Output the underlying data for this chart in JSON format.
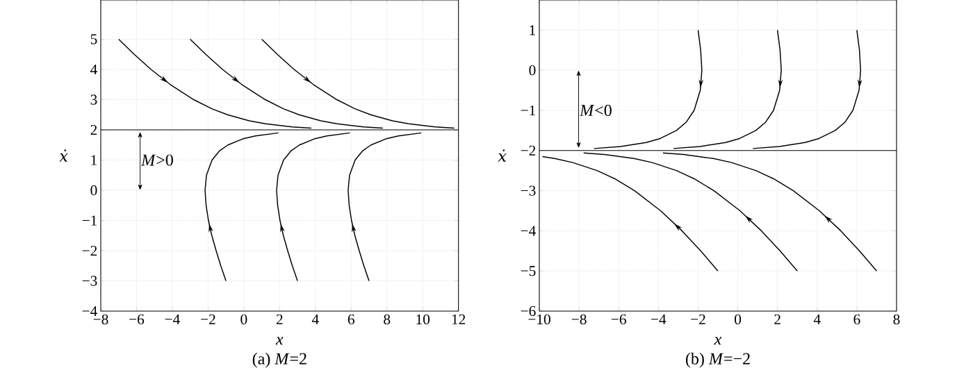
{
  "chart_data": [
    {
      "type": "line",
      "title": "(a) *M*=2",
      "xlabel": "x",
      "ylabel": "ẋ",
      "xlim": [
        -8,
        12
      ],
      "ylim": [
        -4,
        6.3
      ],
      "xticks": [
        {
          "value": -8,
          "label": "−8"
        },
        {
          "value": -6,
          "label": "−6"
        },
        {
          "value": -4,
          "label": "−4"
        },
        {
          "value": -2,
          "label": "−2"
        },
        0,
        2,
        4,
        6,
        8,
        10,
        12
      ],
      "yticks": [
        {
          "value": -4,
          "label": "−4"
        },
        {
          "value": -3,
          "label": "−3"
        },
        {
          "value": -2,
          "label": "−2"
        },
        {
          "value": -1,
          "label": "−1"
        },
        0,
        1,
        2,
        3,
        4,
        5
      ],
      "grid": true,
      "line_style": "solid",
      "ref_lines": [
        {
          "axis": "y",
          "value": 2,
          "color": "#000000"
        }
      ],
      "annotations": [
        "*M*>0"
      ],
      "series": [
        {
          "color": "#000000",
          "x": [
            -7,
            -6.13,
            -5.19,
            -4.11,
            -2.8,
            -1.79,
            -0.91,
            0.31,
            1.22,
            2.7,
            3.77
          ],
          "values": [
            5,
            4.5,
            4,
            3.5,
            3,
            2.7,
            2.5,
            2.3,
            2.2,
            2.1,
            2.06
          ]
        },
        {
          "color": "#000000",
          "x": [
            -3,
            -2.13,
            -1.19,
            -0.11,
            1.2,
            2.21,
            3.09,
            4.31,
            5.22,
            6.7,
            7.77
          ],
          "values": [
            5,
            4.5,
            4,
            3.5,
            3,
            2.7,
            2.5,
            2.3,
            2.2,
            2.1,
            2.06
          ]
        },
        {
          "color": "#000000",
          "x": [
            1,
            1.87,
            2.81,
            3.89,
            5.2,
            6.21,
            7.09,
            8.31,
            9.22,
            10.7,
            11.77
          ],
          "values": [
            5,
            4.5,
            4,
            3.5,
            3,
            2.7,
            2.5,
            2.3,
            2.2,
            2.1,
            2.06
          ]
        },
        {
          "color": "#000000",
          "x": [
            -1,
            -1.29,
            -1.55,
            -1.79,
            -1.98,
            -2.11,
            -2.17,
            -2.09,
            -1.78,
            -1.37,
            -0.89,
            -0.07,
            0.64,
            1.93
          ],
          "values": [
            -3,
            -2.5,
            -2,
            -1.5,
            -1,
            -0.5,
            0,
            0.5,
            1,
            1.3,
            1.5,
            1.7,
            1.8,
            1.9
          ]
        },
        {
          "color": "#000000",
          "x": [
            3,
            2.71,
            2.45,
            2.21,
            2.02,
            1.89,
            1.83,
            1.91,
            2.22,
            2.63,
            3.11,
            3.93,
            4.64,
            5.93
          ],
          "values": [
            -3,
            -2.5,
            -2,
            -1.5,
            -1,
            -0.5,
            0,
            0.5,
            1,
            1.3,
            1.5,
            1.7,
            1.8,
            1.9
          ]
        },
        {
          "color": "#000000",
          "x": [
            7,
            6.71,
            6.45,
            6.21,
            6.02,
            5.89,
            5.83,
            5.91,
            6.22,
            6.63,
            7.11,
            7.93,
            8.64,
            9.93
          ],
          "values": [
            -3,
            -2.5,
            -2,
            -1.5,
            -1,
            -0.5,
            0,
            0.5,
            1,
            1.3,
            1.5,
            1.7,
            1.8,
            1.9
          ]
        }
      ]
    },
    {
      "type": "line",
      "title": "(b) *M*=−2",
      "xlabel": "x",
      "ylabel": "ẋ",
      "xlim": [
        -10,
        8
      ],
      "ylim": [
        -6,
        1.75
      ],
      "xticks": [
        {
          "value": -10,
          "label": "−10"
        },
        {
          "value": -8,
          "label": "−8"
        },
        {
          "value": -6,
          "label": "−6"
        },
        {
          "value": -4,
          "label": "−4"
        },
        {
          "value": -2,
          "label": "−2"
        },
        0,
        2,
        4,
        6,
        8
      ],
      "yticks": [
        {
          "value": -6,
          "label": "−6"
        },
        {
          "value": -5,
          "label": "−5"
        },
        {
          "value": -4,
          "label": "−4"
        },
        {
          "value": -3,
          "label": "−3"
        },
        {
          "value": -2,
          "label": "−2"
        },
        {
          "value": -1,
          "label": "−1"
        },
        0,
        1
      ],
      "grid": true,
      "line_style": "solid",
      "ref_lines": [
        {
          "axis": "y",
          "value": -2,
          "color": "#000000"
        }
      ],
      "annotations": [
        "*M*<0"
      ],
      "series": [
        {
          "color": "#000000",
          "x": [
            -2,
            -1.87,
            -1.81,
            -1.89,
            -2.2,
            -2.61,
            -3.09,
            -3.91,
            -4.62,
            -5.91,
            -7.24
          ],
          "values": [
            1,
            0.5,
            0,
            -0.5,
            -1,
            -1.3,
            -1.5,
            -1.7,
            -1.8,
            -1.9,
            -1.95
          ]
        },
        {
          "color": "#000000",
          "x": [
            2,
            2.13,
            2.19,
            2.11,
            1.8,
            1.39,
            0.91,
            0.09,
            -0.62,
            -1.91,
            -3.24
          ],
          "values": [
            1,
            0.5,
            0,
            -0.5,
            -1,
            -1.3,
            -1.5,
            -1.7,
            -1.8,
            -1.9,
            -1.95
          ]
        },
        {
          "color": "#000000",
          "x": [
            6,
            6.13,
            6.19,
            6.11,
            5.8,
            5.39,
            4.91,
            4.09,
            3.38,
            2.09,
            0.76
          ],
          "values": [
            1,
            0.5,
            0,
            -0.5,
            -1,
            -1.3,
            -1.5,
            -1.7,
            -1.8,
            -1.9,
            -1.95
          ]
        },
        {
          "color": "#000000",
          "x": [
            -1,
            -1.87,
            -2.81,
            -3.89,
            -5.2,
            -6.21,
            -7.09,
            -8.31,
            -9.22,
            -9.84
          ],
          "values": [
            -5,
            -4.5,
            -4,
            -3.5,
            -3,
            -2.7,
            -2.5,
            -2.3,
            -2.2,
            -2.15
          ]
        },
        {
          "color": "#000000",
          "x": [
            3,
            2.13,
            1.19,
            0.11,
            -1.2,
            -2.21,
            -3.09,
            -4.31,
            -5.22,
            -6.71,
            -7.77
          ],
          "values": [
            -5,
            -4.5,
            -4,
            -3.5,
            -3,
            -2.7,
            -2.5,
            -2.3,
            -2.2,
            -2.1,
            -2.06
          ]
        },
        {
          "color": "#000000",
          "x": [
            7,
            6.13,
            5.19,
            4.11,
            2.8,
            1.79,
            0.91,
            -0.31,
            -1.22,
            -2.71,
            -3.77
          ],
          "values": [
            -5,
            -4.5,
            -4,
            -3.5,
            -3,
            -2.7,
            -2.5,
            -2.3,
            -2.2,
            -2.1,
            -2.06
          ]
        }
      ]
    }
  ]
}
